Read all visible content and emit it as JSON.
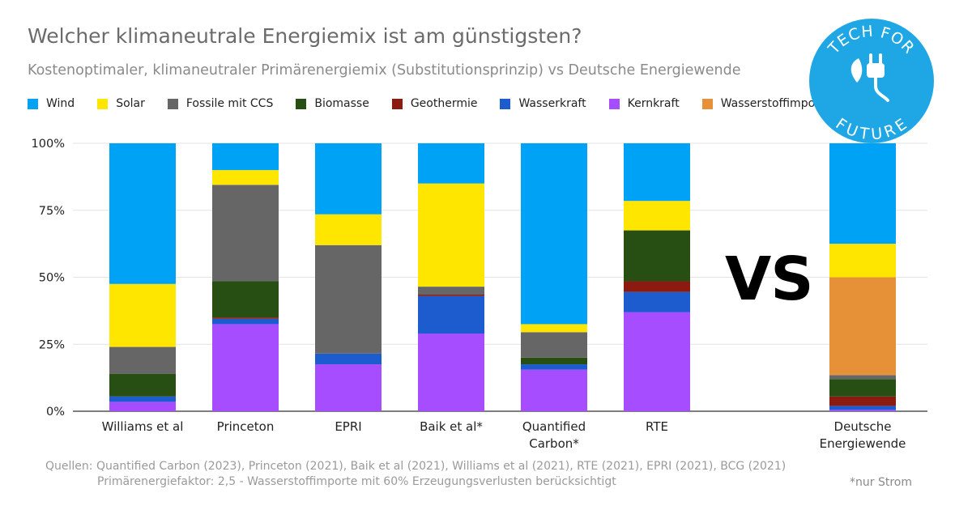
{
  "header": {
    "title": "Welcher klimaneutrale Energiemix ist am günstigsten?",
    "subtitle": "Kostenoptimaler, klimaneutraler Primärenergiemix (Substitutionsprinzip) vs Deutsche Energiewende"
  },
  "vs_label": "VS",
  "logo": {
    "top_text": "TECH FOR",
    "bottom_text": "FUTURE",
    "color": "#1ea7e4",
    "icon": "plug-leaf-icon"
  },
  "sources": {
    "line1": "Quellen: Quantified Carbon (2023), Princeton (2021), Baik et al  (2021), Williams et al (2021), RTE  (2021), EPRI  (2021), BCG (2021)",
    "line2": "Primärenergiefaktor: 2,5 - Wasserstoffimporte mit 60% Erzeugungsverlusten berücksichtigt"
  },
  "footnote": "*nur Strom",
  "chart_data": {
    "type": "bar",
    "stacked": true,
    "ylim": [
      0,
      100
    ],
    "yticks": [
      "0%",
      "25%",
      "50%",
      "75%",
      "100%"
    ],
    "grid": true,
    "legend_position": "top-left",
    "categories": [
      "Williams et al",
      "Princeton",
      "EPRI",
      "Baik et al*",
      "Quantified Carbon*",
      "RTE",
      "",
      "Deutsche Energiewende"
    ],
    "category_lines": [
      [
        "Williams et al"
      ],
      [
        "Princeton"
      ],
      [
        "EPRI"
      ],
      [
        "Baik et al*"
      ],
      [
        "Quantified",
        "Carbon*"
      ],
      [
        "RTE"
      ],
      [],
      [
        "Deutsche",
        "Energiewende"
      ]
    ],
    "series": [
      {
        "name": "Kernkraft",
        "color": "#a64dff",
        "values": [
          3.5,
          32.5,
          17.5,
          29,
          15.5,
          37,
          null,
          0.5
        ]
      },
      {
        "name": "Wasserkraft",
        "color": "#1c5ccf",
        "values": [
          2,
          2,
          4,
          14,
          2,
          7.5,
          null,
          1.5
        ]
      },
      {
        "name": "Geothermie",
        "color": "#8b1a10",
        "values": [
          0,
          0.5,
          0,
          0.5,
          0,
          4,
          null,
          3.5
        ]
      },
      {
        "name": "Biomasse",
        "color": "#274e13",
        "values": [
          8.5,
          13.5,
          0,
          0,
          2.5,
          19,
          null,
          6.5
        ]
      },
      {
        "name": "Fossile mit CCS",
        "color": "#666666",
        "values": [
          10,
          36,
          40.5,
          3,
          9.5,
          0,
          null,
          1.5
        ]
      },
      {
        "name": "Wasserstoffimporte",
        "color": "#e69138",
        "values": [
          0,
          0,
          0,
          0,
          0,
          0,
          null,
          36.5
        ]
      },
      {
        "name": "Solar",
        "color": "#ffe600",
        "values": [
          23.5,
          5.5,
          11.5,
          38.5,
          3,
          11,
          null,
          12.5
        ]
      },
      {
        "name": "Wind",
        "color": "#00a2f5",
        "values": [
          52.5,
          10,
          26.5,
          15,
          67.5,
          21.5,
          null,
          37.5
        ]
      }
    ],
    "legend_order": [
      "Wind",
      "Solar",
      "Fossile mit CCS",
      "Biomasse",
      "Geothermie",
      "Wasserkraft",
      "Kernkraft",
      "Wasserstoffimporte"
    ]
  }
}
